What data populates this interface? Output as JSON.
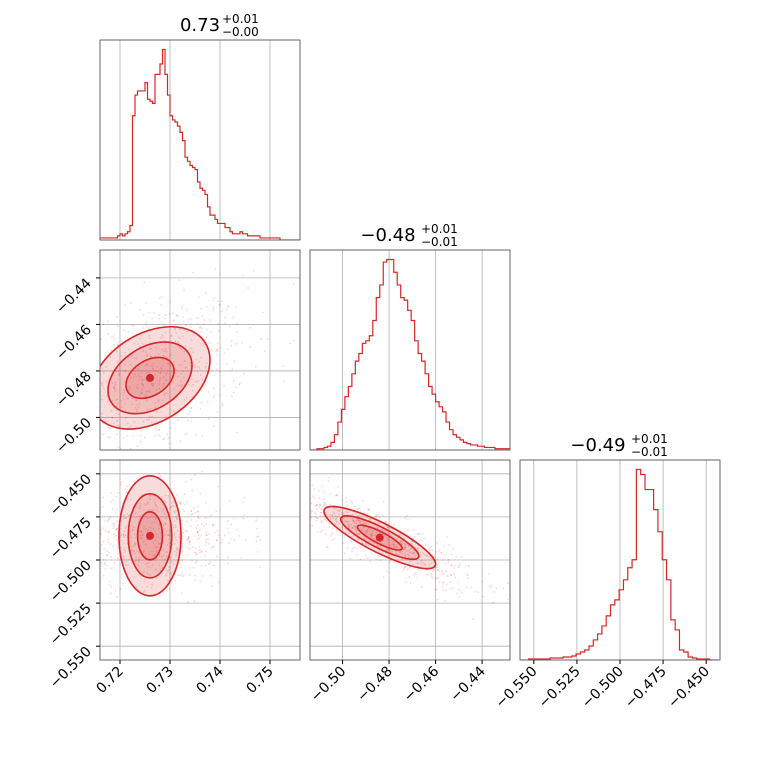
{
  "colors": {
    "accent": "#d62728",
    "grid": "#b0b0b0",
    "frame": "#666666"
  },
  "chart_data": [
    {
      "type": "histogram",
      "panel": "diag-0",
      "title_main": "0.73",
      "title_sup": "+0.01",
      "title_sub": "−0.00",
      "x": [
        0.716,
        0.7165,
        0.717,
        0.7175,
        0.718,
        0.7185,
        0.719,
        0.7195,
        0.72,
        0.7205,
        0.721,
        0.7215,
        0.722,
        0.7225,
        0.723,
        0.7235,
        0.724,
        0.7245,
        0.725,
        0.7255,
        0.726,
        0.7265,
        0.727,
        0.7275,
        0.728,
        0.7285,
        0.729,
        0.7295,
        0.73,
        0.7305,
        0.731,
        0.7315,
        0.732,
        0.7325,
        0.733,
        0.7335,
        0.734,
        0.7345,
        0.735,
        0.7355,
        0.736,
        0.7365,
        0.737,
        0.7375,
        0.738,
        0.7385,
        0.739,
        0.7395,
        0.74,
        0.7405,
        0.741,
        0.7415,
        0.742,
        0.7425,
        0.743,
        0.7435,
        0.744,
        0.7445,
        0.745,
        0.7455,
        0.746,
        0.7465,
        0.747,
        0.7475,
        0.748,
        0.7485,
        0.749,
        0.7495,
        0.75,
        0.7505,
        0.751,
        0.7515,
        0.752,
        0.7525,
        0.753,
        0.7535,
        0.754,
        0.7545,
        0.755,
        0.7555,
        0.756
      ],
      "values": [
        1,
        1,
        1,
        1,
        1,
        1,
        1,
        2,
        3,
        2,
        3,
        4,
        7,
        60,
        70,
        72,
        72,
        72,
        76,
        68,
        67,
        66,
        80,
        80,
        85,
        92,
        80,
        70,
        60,
        58,
        57,
        55,
        52,
        48,
        40,
        38,
        36,
        35,
        34,
        28,
        25,
        24,
        22,
        16,
        12,
        12,
        10,
        8,
        8,
        8,
        6,
        6,
        4,
        3,
        3,
        3,
        4,
        3,
        3,
        2,
        2,
        2,
        2,
        2,
        1,
        1,
        1,
        1,
        1,
        1,
        1,
        1,
        0,
        0,
        0,
        0,
        0,
        0,
        0,
        0
      ],
      "xlim": [
        0.716,
        0.756
      ],
      "grid_x": [
        0.72,
        0.73,
        0.74,
        0.75
      ]
    },
    {
      "type": "histogram",
      "panel": "diag-1",
      "title_main": "−0.48",
      "title_sup": "+0.01",
      "title_sub": "−0.01",
      "x": [
        -0.514,
        -0.5125,
        -0.511,
        -0.5095,
        -0.508,
        -0.5065,
        -0.505,
        -0.5035,
        -0.502,
        -0.5005,
        -0.499,
        -0.4975,
        -0.496,
        -0.4945,
        -0.493,
        -0.4915,
        -0.49,
        -0.4885,
        -0.487,
        -0.4855,
        -0.484,
        -0.4825,
        -0.481,
        -0.4795,
        -0.478,
        -0.4765,
        -0.475,
        -0.4735,
        -0.472,
        -0.4705,
        -0.469,
        -0.4675,
        -0.466,
        -0.4645,
        -0.463,
        -0.4615,
        -0.46,
        -0.4585,
        -0.457,
        -0.4555,
        -0.454,
        -0.4525,
        -0.451,
        -0.4495,
        -0.448,
        -0.4465,
        -0.445,
        -0.4435,
        -0.442,
        -0.4405,
        -0.439,
        -0.4375,
        -0.436,
        -0.4345,
        -0.433,
        -0.4315,
        -0.43,
        -0.4285
      ],
      "values": [
        0,
        0,
        1,
        1,
        2,
        3,
        6,
        12,
        22,
        32,
        42,
        50,
        60,
        70,
        76,
        84,
        86,
        90,
        102,
        120,
        130,
        148,
        150,
        150,
        140,
        130,
        120,
        118,
        110,
        102,
        86,
        76,
        70,
        60,
        50,
        44,
        38,
        34,
        30,
        22,
        16,
        12,
        10,
        8,
        6,
        5,
        4,
        4,
        3,
        3,
        2,
        2,
        2,
        1,
        1,
        1,
        1,
        1
      ],
      "xlim": [
        -0.514,
        -0.428
      ],
      "grid_x": [
        -0.5,
        -0.48,
        -0.46,
        -0.44
      ]
    },
    {
      "type": "histogram",
      "panel": "diag-2",
      "title_main": "−0.49",
      "title_sup": "+0.01",
      "title_sub": "−0.01",
      "x": [
        -0.558,
        -0.5555,
        -0.553,
        -0.5505,
        -0.548,
        -0.5455,
        -0.543,
        -0.5405,
        -0.538,
        -0.5355,
        -0.533,
        -0.5305,
        -0.528,
        -0.5255,
        -0.523,
        -0.5205,
        -0.518,
        -0.5155,
        -0.513,
        -0.5105,
        -0.508,
        -0.5055,
        -0.503,
        -0.5005,
        -0.498,
        -0.4955,
        -0.493,
        -0.4905,
        -0.488,
        -0.4855,
        -0.483,
        -0.4805,
        -0.478,
        -0.4755,
        -0.473,
        -0.4705,
        -0.468,
        -0.4655,
        -0.463,
        -0.4605,
        -0.458,
        -0.4555,
        -0.453,
        -0.4505,
        -0.448,
        -0.4455
      ],
      "values": [
        0,
        0,
        1,
        1,
        1,
        1,
        1,
        2,
        2,
        2,
        3,
        3,
        4,
        6,
        8,
        10,
        14,
        20,
        26,
        34,
        44,
        55,
        60,
        70,
        80,
        92,
        100,
        190,
        185,
        170,
        170,
        150,
        128,
        100,
        80,
        40,
        30,
        10,
        8,
        3,
        2,
        1,
        1,
        1,
        0,
        0
      ],
      "xlim": [
        -0.558,
        -0.442
      ],
      "grid_x": [
        -0.55,
        -0.525,
        -0.5,
        -0.475,
        -0.45
      ]
    },
    {
      "type": "scatter",
      "panel": "corner-1-0",
      "mode": "contour",
      "xlim": [
        0.716,
        0.756
      ],
      "ylim": [
        -0.514,
        -0.428
      ],
      "grid_x": [
        0.72,
        0.73,
        0.74,
        0.75
      ],
      "grid_y": [
        -0.5,
        -0.48,
        -0.46,
        -0.44
      ],
      "center": [
        0.726,
        -0.483
      ],
      "spread": [
        0.006,
        0.011
      ],
      "corr": 0.35
    },
    {
      "type": "scatter",
      "panel": "corner-2-0",
      "mode": "contour",
      "xlim": [
        0.716,
        0.756
      ],
      "ylim": [
        -0.558,
        -0.442
      ],
      "grid_x": [
        0.72,
        0.73,
        0.74,
        0.75
      ],
      "grid_y": [
        -0.55,
        -0.525,
        -0.5,
        -0.475,
        -0.45
      ],
      "center": [
        0.726,
        -0.486
      ],
      "spread": [
        0.006,
        0.009
      ],
      "corr": 0.0
    },
    {
      "type": "scatter",
      "panel": "corner-2-1",
      "mode": "contour",
      "xlim": [
        -0.514,
        -0.428
      ],
      "ylim": [
        -0.558,
        -0.442
      ],
      "grid_x": [
        -0.5,
        -0.48,
        -0.46,
        -0.44
      ],
      "grid_y": [
        -0.55,
        -0.525,
        -0.5,
        -0.475,
        -0.45
      ],
      "center": [
        -0.484,
        -0.487
      ],
      "spread": [
        0.012,
        0.009
      ],
      "corr": -0.85
    }
  ],
  "ticks": {
    "x0": [
      "0.72",
      "0.73",
      "0.74",
      "0.75"
    ],
    "x1": [
      "−0.50",
      "−0.48",
      "−0.46",
      "−0.44"
    ],
    "x2": [
      "−0.550",
      "−0.525",
      "−0.500",
      "−0.475",
      "−0.450"
    ],
    "y1": [
      "−0.50",
      "−0.48",
      "−0.46",
      "−0.44"
    ],
    "y2": [
      "−0.550",
      "−0.525",
      "−0.500",
      "−0.475",
      "−0.450"
    ]
  }
}
